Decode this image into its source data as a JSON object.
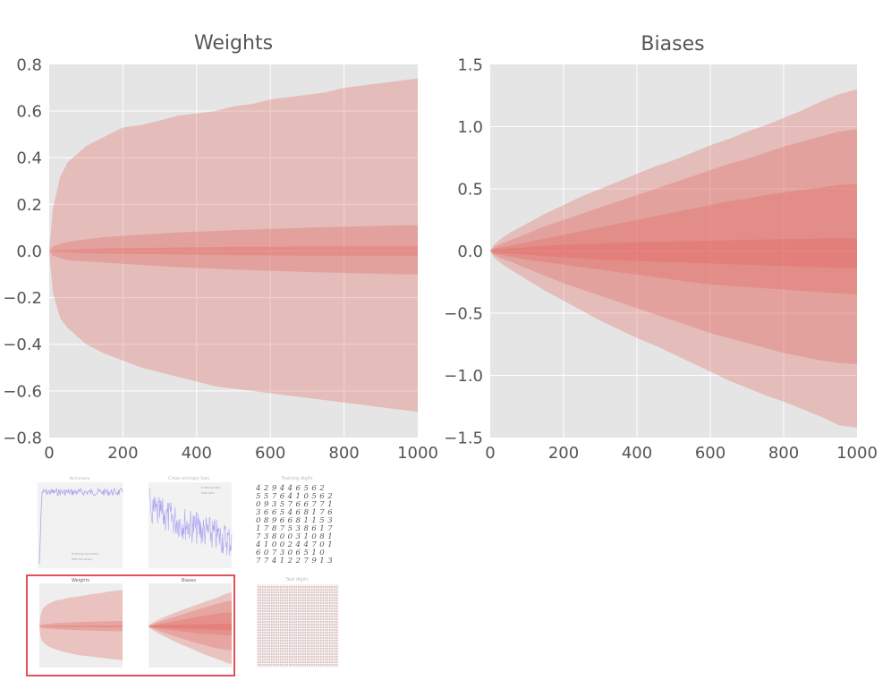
{
  "colors": {
    "plot_bg": "#e5e5e5",
    "grid": "#ffffff",
    "band_color": "#e0605a",
    "text": "#555555",
    "selection": "#e0525a"
  },
  "chart_data": [
    {
      "type": "area",
      "title": "Weights",
      "xlabel": "",
      "ylabel": "",
      "xlim": [
        0,
        1000
      ],
      "ylim": [
        -0.8,
        0.8
      ],
      "xticks": [
        "0",
        "200",
        "400",
        "600",
        "800",
        "1000"
      ],
      "yticks": [
        "0.8",
        "0.6",
        "0.4",
        "0.2",
        "0.0",
        "−0.2",
        "−0.4",
        "−0.6",
        "−0.8"
      ],
      "ytick_values": [
        0.8,
        0.6,
        0.4,
        0.2,
        0.0,
        -0.2,
        -0.4,
        -0.6,
        -0.8
      ],
      "x": [
        0,
        10,
        30,
        50,
        100,
        150,
        200,
        250,
        300,
        350,
        400,
        450,
        500,
        550,
        600,
        650,
        700,
        750,
        800,
        850,
        900,
        950,
        1000
      ],
      "bands": [
        {
          "upper": [
            0,
            0.18,
            0.32,
            0.38,
            0.45,
            0.49,
            0.53,
            0.54,
            0.56,
            0.58,
            0.59,
            0.6,
            0.62,
            0.63,
            0.65,
            0.66,
            0.67,
            0.68,
            0.7,
            0.71,
            0.72,
            0.73,
            0.74
          ],
          "lower": [
            0,
            -0.18,
            -0.29,
            -0.33,
            -0.4,
            -0.44,
            -0.47,
            -0.5,
            -0.52,
            -0.54,
            -0.56,
            -0.58,
            -0.59,
            -0.6,
            -0.61,
            -0.62,
            -0.63,
            -0.64,
            -0.65,
            -0.66,
            -0.67,
            -0.68,
            -0.69
          ]
        },
        {
          "upper": [
            0,
            0.02,
            0.03,
            0.04,
            0.05,
            0.06,
            0.065,
            0.07,
            0.075,
            0.08,
            0.083,
            0.086,
            0.09,
            0.092,
            0.095,
            0.097,
            0.1,
            0.102,
            0.104,
            0.106,
            0.108,
            0.11,
            0.11
          ],
          "lower": [
            0,
            -0.02,
            -0.03,
            -0.04,
            -0.045,
            -0.05,
            -0.055,
            -0.06,
            -0.065,
            -0.07,
            -0.073,
            -0.076,
            -0.08,
            -0.082,
            -0.085,
            -0.087,
            -0.09,
            -0.092,
            -0.094,
            -0.096,
            -0.098,
            -0.1,
            -0.1
          ]
        },
        {
          "upper": [
            0,
            0.003,
            0.005,
            0.007,
            0.009,
            0.011,
            0.012,
            0.013,
            0.014,
            0.015,
            0.016,
            0.017,
            0.018,
            0.018,
            0.019,
            0.019,
            0.02,
            0.02,
            0.02,
            0.02,
            0.02,
            0.02,
            0.02
          ],
          "lower": [
            0,
            -0.003,
            -0.005,
            -0.007,
            -0.009,
            -0.011,
            -0.012,
            -0.013,
            -0.014,
            -0.015,
            -0.016,
            -0.017,
            -0.018,
            -0.018,
            -0.019,
            -0.019,
            -0.02,
            -0.02,
            -0.02,
            -0.02,
            -0.02,
            -0.02,
            -0.02
          ]
        }
      ]
    },
    {
      "type": "area",
      "title": "Biases",
      "xlabel": "",
      "ylabel": "",
      "xlim": [
        0,
        1000
      ],
      "ylim": [
        -1.5,
        1.5
      ],
      "xticks": [
        "0",
        "200",
        "400",
        "600",
        "800",
        "1000"
      ],
      "yticks": [
        "1.5",
        "1.0",
        "0.5",
        "0.0",
        "−0.5",
        "−1.0",
        "−1.5"
      ],
      "ytick_values": [
        1.5,
        1.0,
        0.5,
        0.0,
        -0.5,
        -1.0,
        -1.5
      ],
      "x": [
        0,
        10,
        30,
        50,
        100,
        150,
        200,
        250,
        300,
        350,
        400,
        450,
        500,
        550,
        600,
        650,
        700,
        750,
        800,
        850,
        900,
        950,
        1000
      ],
      "bands": [
        {
          "upper": [
            0,
            0.05,
            0.1,
            0.14,
            0.22,
            0.3,
            0.37,
            0.44,
            0.5,
            0.56,
            0.62,
            0.68,
            0.73,
            0.79,
            0.85,
            0.9,
            0.96,
            1.01,
            1.07,
            1.13,
            1.2,
            1.26,
            1.3
          ],
          "lower": [
            0,
            -0.05,
            -0.1,
            -0.14,
            -0.23,
            -0.32,
            -0.4,
            -0.48,
            -0.56,
            -0.63,
            -0.7,
            -0.76,
            -0.83,
            -0.9,
            -0.97,
            -1.04,
            -1.1,
            -1.16,
            -1.21,
            -1.27,
            -1.33,
            -1.4,
            -1.42
          ]
        },
        {
          "upper": [
            0,
            0.03,
            0.06,
            0.08,
            0.14,
            0.2,
            0.25,
            0.3,
            0.35,
            0.4,
            0.45,
            0.5,
            0.55,
            0.6,
            0.65,
            0.7,
            0.74,
            0.79,
            0.84,
            0.88,
            0.92,
            0.96,
            0.98
          ],
          "lower": [
            0,
            -0.03,
            -0.06,
            -0.08,
            -0.14,
            -0.2,
            -0.26,
            -0.31,
            -0.36,
            -0.41,
            -0.46,
            -0.51,
            -0.56,
            -0.61,
            -0.66,
            -0.7,
            -0.74,
            -0.78,
            -0.82,
            -0.85,
            -0.88,
            -0.9,
            -0.91
          ]
        },
        {
          "upper": [
            0,
            0.02,
            0.03,
            0.04,
            0.07,
            0.1,
            0.13,
            0.16,
            0.19,
            0.22,
            0.25,
            0.28,
            0.31,
            0.34,
            0.37,
            0.4,
            0.42,
            0.45,
            0.47,
            0.49,
            0.51,
            0.53,
            0.54
          ],
          "lower": [
            0,
            -0.02,
            -0.03,
            -0.04,
            -0.07,
            -0.09,
            -0.11,
            -0.13,
            -0.15,
            -0.17,
            -0.19,
            -0.21,
            -0.23,
            -0.25,
            -0.27,
            -0.28,
            -0.29,
            -0.3,
            -0.31,
            -0.32,
            -0.33,
            -0.34,
            -0.35
          ]
        },
        {
          "upper": [
            0,
            0.01,
            0.015,
            0.02,
            0.03,
            0.04,
            0.05,
            0.055,
            0.06,
            0.065,
            0.07,
            0.073,
            0.076,
            0.08,
            0.083,
            0.086,
            0.09,
            0.092,
            0.095,
            0.098,
            0.1,
            0.102,
            0.1
          ],
          "lower": [
            0,
            -0.01,
            -0.015,
            -0.02,
            -0.03,
            -0.04,
            -0.05,
            -0.06,
            -0.07,
            -0.075,
            -0.08,
            -0.085,
            -0.09,
            -0.095,
            -0.1,
            -0.105,
            -0.11,
            -0.115,
            -0.12,
            -0.125,
            -0.13,
            -0.135,
            -0.14
          ]
        }
      ]
    }
  ],
  "thumbnails": {
    "accuracy_title": "Accuracy",
    "accuracy_legend": [
      "training accuracy",
      "test accuracy"
    ],
    "xent_title": "Cross entropy loss",
    "xent_legend": [
      "training loss",
      "test loss"
    ],
    "training_digits_title": "Training digits",
    "training_digits_rows": [
      "4 2 9 4 4 6 5 6 2",
      "5 5 7 6 4 1 0 5 6 2",
      "0 9 3 5 7 6 6 7 7 1",
      "3 6 6 5 4 6 8 1 7 6",
      "0 8 9 6 6 8 1 1 5 3",
      "1 7 8 7 5 3 8 6 1 7",
      "7 3 8 0 0 3 1 0 8 1",
      "4 1 0 0 2 4 4 7 0 1",
      "6 0 7 3 0 6 5 1 0",
      "7 7 4 1 2 2 7 9 1 3"
    ],
    "test_digits_title": "Test digits"
  }
}
